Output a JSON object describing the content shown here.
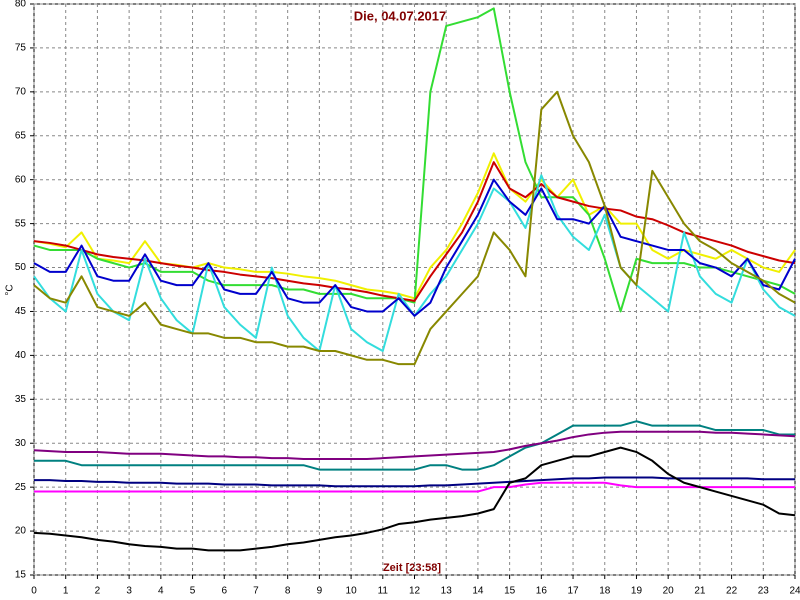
{
  "chart_data": {
    "type": "line",
    "title": "Die, 04.07.2017",
    "xlabel": "Zeit [23:58]",
    "ylabel": "°C",
    "x": [
      0,
      0.5,
      1,
      1.5,
      2,
      2.5,
      3,
      3.5,
      4,
      4.5,
      5,
      5.5,
      6,
      6.5,
      7,
      7.5,
      8,
      8.5,
      9,
      9.5,
      10,
      10.5,
      11,
      11.5,
      12,
      12.5,
      13,
      13.5,
      14,
      14.5,
      15,
      15.5,
      16,
      16.5,
      17,
      17.5,
      18,
      18.5,
      19,
      19.5,
      20,
      20.5,
      21,
      21.5,
      22,
      22.5,
      23,
      23.5,
      24
    ],
    "xlim": [
      0,
      24
    ],
    "xticks": [
      0,
      1,
      2,
      3,
      4,
      5,
      6,
      7,
      8,
      9,
      10,
      11,
      12,
      13,
      14,
      15,
      16,
      17,
      18,
      19,
      20,
      21,
      22,
      23,
      24
    ],
    "ylim": [
      15,
      80
    ],
    "yticks": [
      15,
      20,
      25,
      30,
      35,
      40,
      45,
      50,
      55,
      60,
      65,
      70,
      75,
      80
    ],
    "grid": true,
    "series": [
      {
        "color": "#f0f000",
        "values": [
          53,
          52.7,
          52.3,
          54,
          51,
          50.8,
          50.5,
          53,
          50.5,
          50.3,
          50,
          50.5,
          50,
          49.8,
          49.5,
          49.5,
          49.3,
          49,
          48.8,
          48.5,
          48,
          47.5,
          47.3,
          47,
          46.5,
          50,
          52,
          55,
          58.5,
          63,
          59,
          57.5,
          60,
          58,
          60,
          56,
          57,
          55,
          55,
          52,
          51,
          52,
          51.5,
          51,
          52,
          51,
          50,
          49.5,
          52
        ]
      },
      {
        "color": "#33dd33",
        "values": [
          52.5,
          52,
          52,
          52,
          51,
          50.5,
          50,
          50.5,
          49.5,
          49.5,
          49.5,
          48.5,
          48,
          48,
          48,
          48,
          47.5,
          47.5,
          47,
          47,
          47,
          46.5,
          46.5,
          46.5,
          46,
          70,
          77.5,
          78,
          78.5,
          79.5,
          70,
          62,
          58,
          58,
          58,
          56,
          51,
          45,
          51,
          50.5,
          50.5,
          50.5,
          50,
          50,
          49.5,
          49,
          48.5,
          48,
          47
        ]
      },
      {
        "color": "#cc0000",
        "values": [
          53,
          52.8,
          52.5,
          52,
          51.5,
          51.2,
          51,
          50.8,
          50.5,
          50.2,
          50,
          49.7,
          49.5,
          49.2,
          49,
          48.8,
          48.5,
          48.2,
          48,
          47.7,
          47.5,
          47.2,
          46.8,
          46.5,
          46.2,
          49,
          51.5,
          54,
          57.5,
          62,
          59,
          58,
          59.5,
          58,
          57.5,
          57,
          56.7,
          56.5,
          55.8,
          55.5,
          54.8,
          54,
          53.5,
          53,
          52.5,
          51.8,
          51.3,
          50.8,
          50.5
        ]
      },
      {
        "color": "#33dddd",
        "values": [
          49,
          46.5,
          45,
          52,
          47,
          45,
          44,
          51,
          46.5,
          44,
          42.5,
          50.5,
          45.5,
          43.5,
          42,
          50,
          44.5,
          42,
          40.5,
          48,
          43,
          41.5,
          40.5,
          47,
          44.5,
          47,
          49,
          52,
          55,
          59,
          57.5,
          54.5,
          60.5,
          56,
          53.5,
          52,
          56,
          50,
          48,
          46.5,
          45,
          54,
          49,
          47,
          46,
          51,
          47.5,
          45.5,
          44.5
        ]
      },
      {
        "color": "#0000cc",
        "values": [
          50.5,
          49.5,
          49.5,
          52.5,
          49,
          48.5,
          48.5,
          51.5,
          48.5,
          48,
          48,
          50.5,
          47.5,
          47,
          47,
          49.5,
          46.5,
          46,
          46,
          48,
          45.5,
          45,
          45,
          46.5,
          44.5,
          46,
          50,
          53,
          56,
          60,
          57.5,
          56,
          59,
          55.5,
          55.5,
          55,
          57,
          53.5,
          53,
          52.5,
          52,
          52,
          50.5,
          50,
          49,
          51,
          48,
          47.5,
          51
        ]
      },
      {
        "color": "#888800",
        "values": [
          48,
          46.5,
          46,
          49,
          45.5,
          45,
          44.5,
          46,
          43.5,
          43,
          42.5,
          42.5,
          42,
          42,
          41.5,
          41.5,
          41,
          41,
          40.5,
          40.5,
          40,
          39.5,
          39.5,
          39,
          39,
          43,
          45,
          47,
          49,
          54,
          52,
          49,
          68,
          70,
          65,
          62,
          57,
          50,
          48,
          61,
          58,
          55,
          53,
          52,
          50.5,
          49.5,
          48.5,
          47,
          46
        ]
      },
      {
        "color": "#008080",
        "values": [
          28,
          28,
          28,
          27.5,
          27.5,
          27.5,
          27.5,
          27.5,
          27.5,
          27.5,
          27.5,
          27.5,
          27.5,
          27.5,
          27.5,
          27.5,
          27.5,
          27.5,
          27,
          27,
          27,
          27,
          27,
          27,
          27,
          27.5,
          27.5,
          27,
          27,
          27.5,
          28.5,
          29.5,
          30,
          31,
          32,
          32,
          32,
          32,
          32.5,
          32,
          32,
          32,
          32,
          31.5,
          31.5,
          31.5,
          31.5,
          31,
          31
        ]
      },
      {
        "color": "#800080",
        "values": [
          29.2,
          29.1,
          29,
          29,
          29,
          28.9,
          28.8,
          28.8,
          28.8,
          28.7,
          28.6,
          28.5,
          28.5,
          28.4,
          28.4,
          28.3,
          28.3,
          28.2,
          28.2,
          28.2,
          28.2,
          28.2,
          28.3,
          28.4,
          28.5,
          28.6,
          28.7,
          28.8,
          28.9,
          29,
          29.3,
          29.7,
          30,
          30.3,
          30.7,
          31,
          31.2,
          31.3,
          31.3,
          31.3,
          31.3,
          31.3,
          31.3,
          31.2,
          31.2,
          31.1,
          31,
          30.9,
          30.8
        ]
      },
      {
        "color": "#000080",
        "values": [
          25.8,
          25.8,
          25.7,
          25.7,
          25.6,
          25.6,
          25.5,
          25.5,
          25.5,
          25.4,
          25.4,
          25.4,
          25.3,
          25.3,
          25.3,
          25.2,
          25.2,
          25.2,
          25.2,
          25.1,
          25.1,
          25.1,
          25.1,
          25.1,
          25.1,
          25.2,
          25.2,
          25.3,
          25.4,
          25.5,
          25.6,
          25.7,
          25.8,
          25.9,
          26,
          26,
          26.1,
          26.1,
          26.1,
          26.1,
          26,
          26,
          26,
          26,
          26,
          26,
          25.9,
          25.9,
          25.9
        ]
      },
      {
        "color": "#ff00ff",
        "values": [
          24.5,
          24.5,
          24.5,
          24.5,
          24.5,
          24.5,
          24.5,
          24.5,
          24.5,
          24.5,
          24.5,
          24.5,
          24.5,
          24.5,
          24.5,
          24.5,
          24.5,
          24.5,
          24.5,
          24.5,
          24.5,
          24.5,
          24.5,
          24.5,
          24.5,
          24.5,
          24.5,
          24.5,
          24.5,
          25,
          25,
          25.3,
          25.5,
          25.5,
          25.5,
          25.5,
          25.5,
          25.2,
          25,
          25,
          25,
          25,
          25,
          25,
          25,
          25,
          25,
          25,
          25
        ]
      },
      {
        "color": "#000000",
        "values": [
          19.8,
          19.7,
          19.5,
          19.3,
          19,
          18.8,
          18.5,
          18.3,
          18.2,
          18,
          18,
          17.8,
          17.8,
          17.8,
          18,
          18.2,
          18.5,
          18.7,
          19,
          19.3,
          19.5,
          19.8,
          20.2,
          20.8,
          21,
          21.3,
          21.5,
          21.7,
          22,
          22.5,
          25.5,
          26,
          27.5,
          28,
          28.5,
          28.5,
          29,
          29.5,
          29,
          28,
          26.5,
          25.5,
          25,
          24.5,
          24,
          23.5,
          23,
          22,
          21.8
        ]
      }
    ]
  }
}
